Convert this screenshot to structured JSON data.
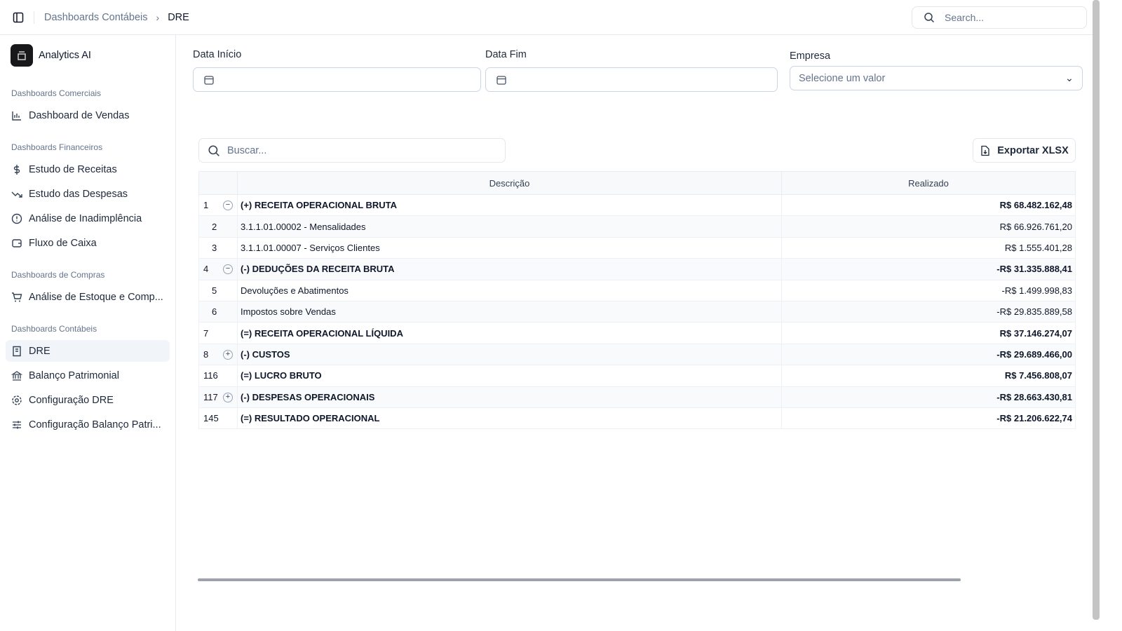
{
  "header": {
    "breadcrumb": [
      "Dashboards Contábeis",
      "DRE"
    ],
    "search_placeholder": "Search..."
  },
  "sidebar": {
    "brand": "Analytics AI",
    "groups": [
      {
        "label": "Dashboards Comerciais",
        "items": [
          {
            "label": "Dashboard de Vendas",
            "icon": "bar-chart-icon"
          }
        ]
      },
      {
        "label": "Dashboards Financeiros",
        "items": [
          {
            "label": "Estudo de Receitas",
            "icon": "dollar-icon"
          },
          {
            "label": "Estudo das Despesas",
            "icon": "trending-down-icon"
          },
          {
            "label": "Análise de Inadimplência",
            "icon": "alert-circle-icon"
          },
          {
            "label": "Fluxo de Caixa",
            "icon": "wallet-icon"
          }
        ]
      },
      {
        "label": "Dashboards de Compras",
        "items": [
          {
            "label": "Análise de Estoque e Comp...",
            "icon": "cart-icon"
          }
        ]
      },
      {
        "label": "Dashboards Contábeis",
        "items": [
          {
            "label": "DRE",
            "icon": "receipt-icon",
            "active": true
          },
          {
            "label": "Balanço Patrimonial",
            "icon": "bank-icon"
          },
          {
            "label": "Configuração DRE",
            "icon": "gear-icon"
          },
          {
            "label": "Configuração Balanço Patri...",
            "icon": "sliders-icon"
          }
        ]
      }
    ]
  },
  "filters": {
    "start_label": "Data Início",
    "end_label": "Data Fim",
    "company_label": "Empresa",
    "company_placeholder": "Selecione um valor"
  },
  "table": {
    "search_placeholder": "Buscar...",
    "export_label": "Exportar XLSX",
    "columns": [
      "",
      "Descrição",
      "Realizado"
    ],
    "rows": [
      {
        "n": "1",
        "toggle": "−",
        "desc": "(+) RECEITA OPERACIONAL BRUTA",
        "value": "R$ 68.482.162,48",
        "bold": true
      },
      {
        "n": "2",
        "desc": "3.1.1.01.00002 - Mensalidades",
        "value": "R$ 66.926.761,20",
        "child": true
      },
      {
        "n": "3",
        "desc": "3.1.1.01.00007 - Serviços Clientes",
        "value": "R$ 1.555.401,28",
        "child": true
      },
      {
        "n": "4",
        "toggle": "−",
        "desc": "(-) DEDUÇÕES DA RECEITA BRUTA",
        "value": "-R$ 31.335.888,41",
        "bold": true
      },
      {
        "n": "5",
        "desc": "Devoluções e Abatimentos",
        "value": "-R$ 1.499.998,83",
        "child": true
      },
      {
        "n": "6",
        "desc": "Impostos sobre Vendas",
        "value": "-R$ 29.835.889,58",
        "child": true
      },
      {
        "n": "7",
        "desc": "(=) RECEITA OPERACIONAL LÍQUIDA",
        "value": "R$ 37.146.274,07",
        "bold": true
      },
      {
        "n": "8",
        "toggle": "+",
        "desc": "(-) CUSTOS",
        "value": "-R$ 29.689.466,00",
        "bold": true
      },
      {
        "n": "116",
        "desc": "(=) LUCRO BRUTO",
        "value": "R$ 7.456.808,07",
        "bold": true
      },
      {
        "n": "117",
        "toggle": "+",
        "desc": "(-) DESPESAS OPERACIONAIS",
        "value": "-R$ 28.663.430,81",
        "bold": true
      },
      {
        "n": "145",
        "desc": "(=) RESULTADO OPERACIONAL",
        "value": "-R$ 21.206.622,74",
        "bold": true
      }
    ]
  }
}
